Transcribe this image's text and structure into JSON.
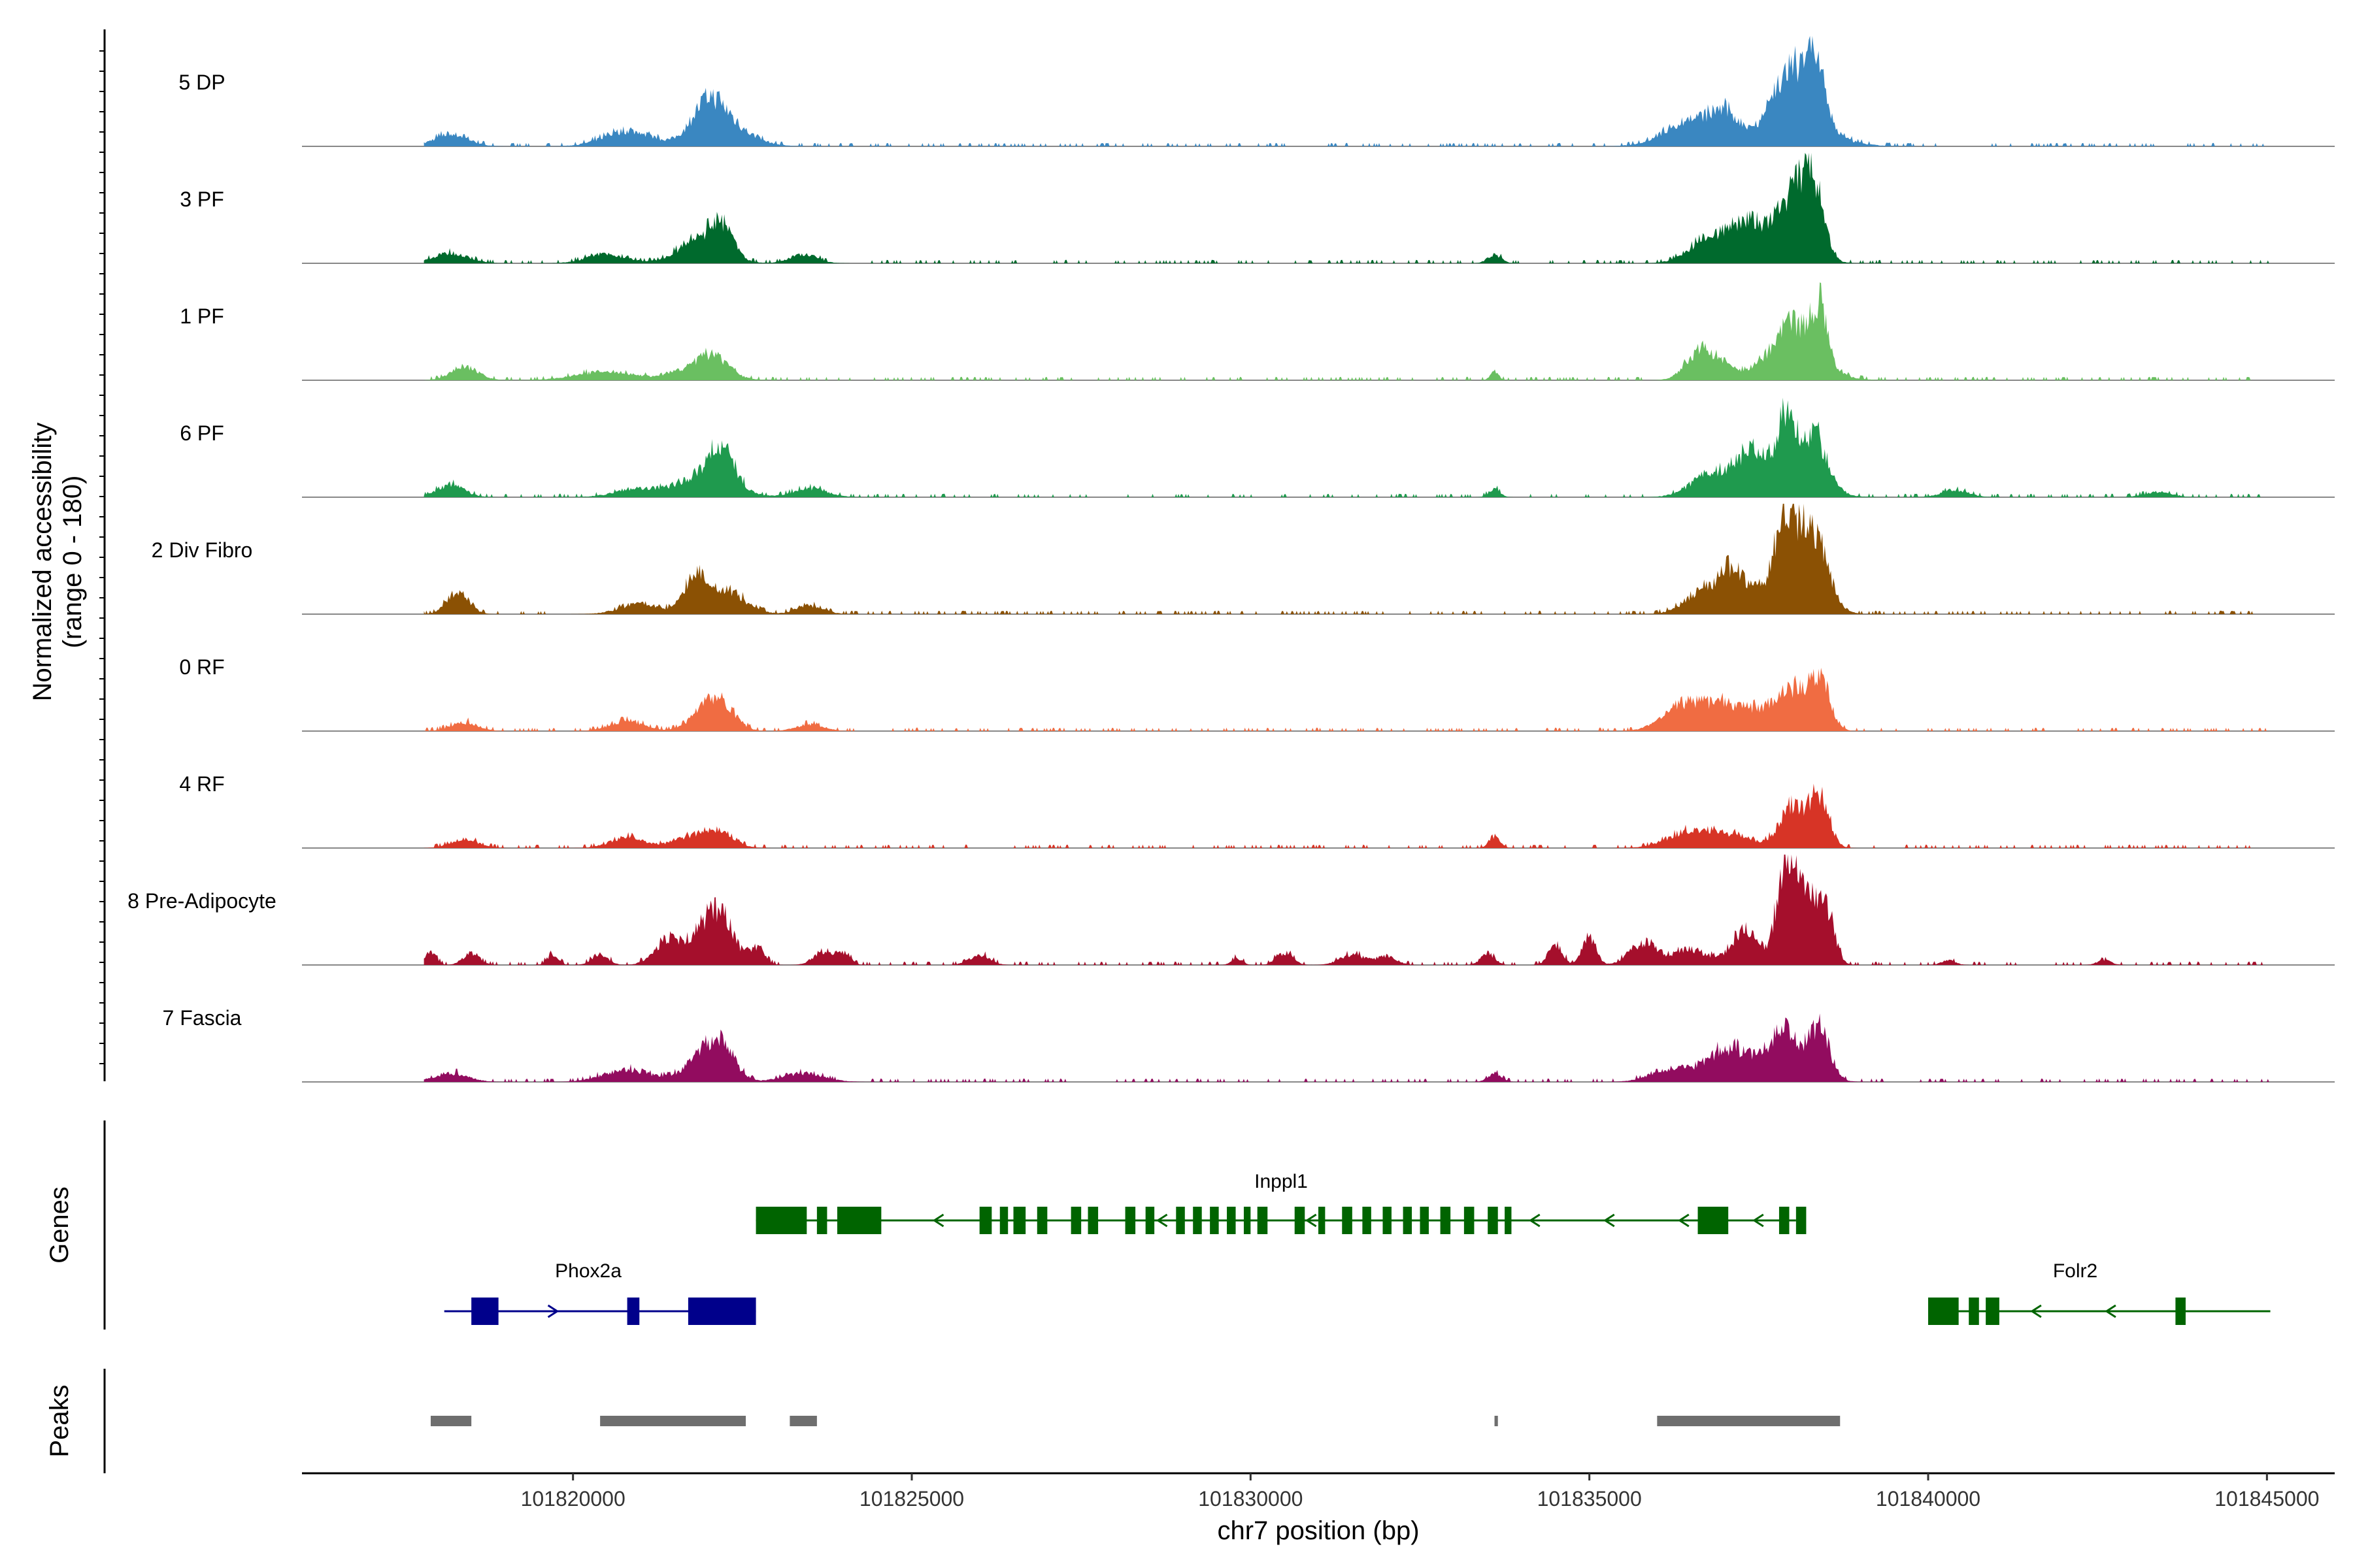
{
  "chart_data": {
    "type": "area",
    "title": "",
    "region": "chr7",
    "xlabel": "chr7 position (bp)",
    "ylabel": [
      "Normalized accessibility",
      "(range 0 - 180)"
    ],
    "xlim": [
      101816000,
      101846000
    ],
    "ylim": [
      0,
      180
    ],
    "x_ticks": [
      101820000,
      101825000,
      101830000,
      101835000,
      101840000,
      101845000
    ],
    "x_tick_labels": [
      "101820000",
      "101825000",
      "101830000",
      "101835000",
      "101840000",
      "101845000"
    ],
    "genes_label": "Genes",
    "peaks_label": "Peaks",
    "series": [
      {
        "name": "5 DP",
        "color": "#3a87c1",
        "peaks": [
          [
            101818200,
            14,
            250
          ],
          [
            101820800,
            18,
            350
          ],
          [
            101822000,
            34,
            230
          ],
          [
            101822200,
            26,
            380
          ],
          [
            101836500,
            30,
            380
          ],
          [
            101837000,
            26,
            200
          ],
          [
            101837900,
            52,
            220
          ],
          [
            101838300,
            80,
            160
          ],
          [
            101838000,
            30,
            500
          ]
        ]
      },
      {
        "name": "3 PF",
        "color": "#006a2d",
        "peaks": [
          [
            101818200,
            12,
            250
          ],
          [
            101820500,
            10,
            300
          ],
          [
            101821900,
            28,
            320
          ],
          [
            101822200,
            30,
            160
          ],
          [
            101823400,
            10,
            200
          ],
          [
            101833600,
            10,
            100
          ],
          [
            101836800,
            30,
            300
          ],
          [
            101837300,
            25,
            200
          ],
          [
            101838000,
            55,
            200
          ],
          [
            101838300,
            80,
            150
          ],
          [
            101837700,
            30,
            400
          ]
        ]
      },
      {
        "name": "1 PF",
        "color": "#6abf61",
        "peaks": [
          [
            101818400,
            16,
            200
          ],
          [
            101820500,
            10,
            450
          ],
          [
            101821900,
            18,
            330
          ],
          [
            101822100,
            14,
            200
          ],
          [
            101833600,
            10,
            60
          ],
          [
            101836600,
            28,
            200
          ],
          [
            101836900,
            18,
            200
          ],
          [
            101837600,
            14,
            250
          ],
          [
            101838000,
            40,
            200
          ],
          [
            101838400,
            70,
            120
          ],
          [
            101838100,
            25,
            400
          ]
        ]
      },
      {
        "name": "6 PF",
        "color": "#1f9a4e",
        "peaks": [
          [
            101818200,
            14,
            200
          ],
          [
            101821000,
            10,
            350
          ],
          [
            101822000,
            28,
            360
          ],
          [
            101822200,
            34,
            180
          ],
          [
            101823500,
            10,
            250
          ],
          [
            101833600,
            10,
            80
          ],
          [
            101836800,
            24,
            300
          ],
          [
            101837400,
            30,
            200
          ],
          [
            101837900,
            70,
            120
          ],
          [
            101838300,
            62,
            200
          ],
          [
            101837700,
            28,
            500
          ],
          [
            101840400,
            8,
            200
          ],
          [
            101843400,
            6,
            200
          ]
        ]
      },
      {
        "name": "2 Div Fibro",
        "color": "#8b5104",
        "peaks": [
          [
            101818300,
            26,
            160
          ],
          [
            101821000,
            12,
            300
          ],
          [
            101821800,
            38,
            150
          ],
          [
            101822200,
            30,
            300
          ],
          [
            101823500,
            10,
            200
          ],
          [
            101836700,
            26,
            280
          ],
          [
            101837100,
            38,
            180
          ],
          [
            101837900,
            95,
            170
          ],
          [
            101838300,
            88,
            220
          ],
          [
            101837500,
            22,
            300
          ]
        ]
      },
      {
        "name": "0 RF",
        "color": "#f06c42",
        "peaks": [
          [
            101818400,
            10,
            200
          ],
          [
            101820800,
            12,
            250
          ],
          [
            101822000,
            24,
            250
          ],
          [
            101822200,
            20,
            200
          ],
          [
            101823500,
            8,
            200
          ],
          [
            101836400,
            30,
            300
          ],
          [
            101837000,
            26,
            300
          ],
          [
            101838000,
            40,
            200
          ],
          [
            101838400,
            60,
            150
          ],
          [
            101837600,
            20,
            300
          ]
        ]
      },
      {
        "name": "4 RF",
        "color": "#d73426",
        "peaks": [
          [
            101818400,
            10,
            200
          ],
          [
            101820800,
            12,
            250
          ],
          [
            101821800,
            14,
            300
          ],
          [
            101822200,
            14,
            200
          ],
          [
            101833600,
            14,
            80
          ],
          [
            101836400,
            14,
            300
          ],
          [
            101837000,
            16,
            400
          ],
          [
            101838000,
            50,
            180
          ],
          [
            101838400,
            60,
            140
          ]
        ]
      },
      {
        "name": "8 Pre-Adipocyte",
        "color": "#a50f2c",
        "peaks": [
          [
            101817900,
            16,
            80
          ],
          [
            101818500,
            14,
            120
          ],
          [
            101819700,
            12,
            80
          ],
          [
            101820400,
            12,
            120
          ],
          [
            101821400,
            28,
            200
          ],
          [
            101821900,
            36,
            200
          ],
          [
            101822200,
            50,
            180
          ],
          [
            101822700,
            20,
            120
          ],
          [
            101823700,
            16,
            150
          ],
          [
            101824000,
            12,
            100
          ],
          [
            101826000,
            12,
            150
          ],
          [
            101829800,
            8,
            80
          ],
          [
            101830500,
            14,
            120
          ],
          [
            101831500,
            12,
            180
          ],
          [
            101832000,
            10,
            150
          ],
          [
            101833500,
            14,
            100
          ],
          [
            101834500,
            24,
            100
          ],
          [
            101835000,
            32,
            100
          ],
          [
            101835800,
            26,
            200
          ],
          [
            101836500,
            18,
            250
          ],
          [
            101837300,
            40,
            200
          ],
          [
            101837900,
            120,
            130
          ],
          [
            101838200,
            80,
            150
          ],
          [
            101838500,
            60,
            120
          ],
          [
            101840300,
            6,
            100
          ],
          [
            101842600,
            6,
            100
          ]
        ]
      },
      {
        "name": "7 Fascia",
        "color": "#920c5f",
        "peaks": [
          [
            101818200,
            10,
            250
          ],
          [
            101820800,
            14,
            350
          ],
          [
            101821900,
            28,
            250
          ],
          [
            101822200,
            34,
            200
          ],
          [
            101823400,
            10,
            300
          ],
          [
            101833600,
            10,
            100
          ],
          [
            101836200,
            14,
            300
          ],
          [
            101837000,
            26,
            300
          ],
          [
            101837900,
            48,
            200
          ],
          [
            101838400,
            58,
            150
          ],
          [
            101837500,
            20,
            500
          ]
        ]
      }
    ],
    "genes": [
      {
        "name": "Inppl1",
        "strand": "-",
        "start": 101822700,
        "end": 101838050,
        "color": "#006400",
        "exons": [
          [
            101822700,
            101823450
          ],
          [
            101823600,
            101823750
          ],
          [
            101823900,
            101824550
          ],
          [
            101826000,
            101826180
          ],
          [
            101826300,
            101826420
          ],
          [
            101826500,
            101826680
          ],
          [
            101826850,
            101827000
          ],
          [
            101827350,
            101827500
          ],
          [
            101827600,
            101827750
          ],
          [
            101828150,
            101828300
          ],
          [
            101828450,
            101828580
          ],
          [
            101828900,
            101829030
          ],
          [
            101829150,
            101829280
          ],
          [
            101829400,
            101829530
          ],
          [
            101829650,
            101829780
          ],
          [
            101829900,
            101830000
          ],
          [
            101830100,
            101830250
          ],
          [
            101830650,
            101830800
          ],
          [
            101831000,
            101831100
          ],
          [
            101831350,
            101831500
          ],
          [
            101831650,
            101831780
          ],
          [
            101831950,
            101832080
          ],
          [
            101832250,
            101832380
          ],
          [
            101832500,
            101832630
          ],
          [
            101832800,
            101832950
          ],
          [
            101833150,
            101833300
          ],
          [
            101833500,
            101833650
          ],
          [
            101833750,
            101833850
          ],
          [
            101836600,
            101837050
          ],
          [
            101837800,
            101837950
          ],
          [
            101838050,
            101838200
          ]
        ]
      },
      {
        "name": "Phox2a",
        "strand": "+",
        "start": 101818100,
        "end": 101822700,
        "color": "#00008b",
        "exons": [
          [
            101818500,
            101818900
          ],
          [
            101820800,
            101820980
          ],
          [
            101821700,
            101822700
          ]
        ]
      },
      {
        "name": "Folr2",
        "strand": "-",
        "start": 101840000,
        "end": 101845050,
        "color": "#006400",
        "exons": [
          [
            101840000,
            101840450
          ],
          [
            101840600,
            101840750
          ],
          [
            101840850,
            101841050
          ],
          [
            101843650,
            101843800
          ]
        ]
      }
    ],
    "peaks": [
      [
        101817900,
        101818500
      ],
      [
        101820400,
        101822550
      ],
      [
        101823200,
        101823600
      ],
      [
        101833600,
        101833650
      ],
      [
        101836000,
        101838700
      ]
    ]
  }
}
